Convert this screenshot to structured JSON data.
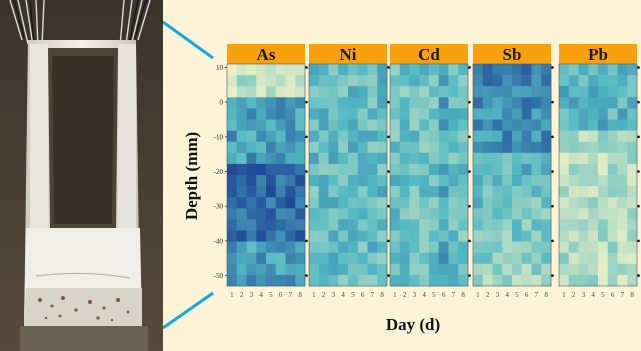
{
  "chart_data": {
    "type": "heatmap",
    "xlabel": "Day (d)",
    "ylabel": "Depth (mm)",
    "x_ticks": [
      "1",
      "2",
      "3",
      "4",
      "5",
      "6",
      "7",
      "8"
    ],
    "y_ticks": [
      "10",
      "0",
      "-10",
      "-20",
      "-30",
      "-40",
      "-50"
    ],
    "ylim": [
      -53,
      11
    ],
    "panels": [
      {
        "title": "As"
      },
      {
        "title": "Ni"
      },
      {
        "title": "Cd"
      },
      {
        "title": "Sb"
      },
      {
        "title": "Pb"
      }
    ],
    "colors": {
      "panel_header": "#f7a10f",
      "scale_low": "#f2f2c4",
      "scale_mid": "#53b9c3",
      "scale_high": "#1c3f95"
    }
  },
  "colors": {
    "background": "#fdf4d7",
    "connector_line": "#1ca6dd"
  }
}
